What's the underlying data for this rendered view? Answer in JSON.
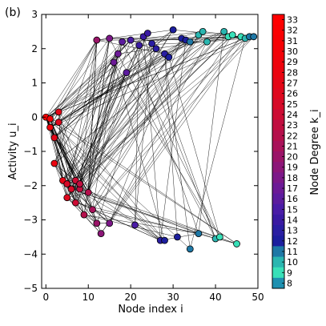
{
  "panel_label": "(b)",
  "chart_data": {
    "type": "scatter",
    "title": "",
    "xlabel": "Node index i",
    "ylabel": "Activity u_i",
    "xlim": [
      -1,
      50
    ],
    "ylim": [
      -5,
      3
    ],
    "x_ticks": [
      "0",
      "10",
      "20",
      "30",
      "40",
      "50"
    ],
    "y_ticks": [
      "3",
      "2",
      "1",
      "0",
      "−1",
      "−2",
      "−3",
      "−4",
      "−5"
    ],
    "colorbar": {
      "label": "Node Degree k_i",
      "min": 8,
      "max": 33,
      "tick_labels": [
        "33",
        "32",
        "31",
        "30",
        "29",
        "28",
        "27",
        "26",
        "25",
        "24",
        "23",
        "22",
        "21",
        "20",
        "19",
        "18",
        "17",
        "16",
        "15",
        "14",
        "13",
        "12",
        "11",
        "10",
        "9",
        "8"
      ],
      "colors": {
        "8": "#1e90b0",
        "9": "#38e0b8",
        "10": "#2ab6b0",
        "11": "#1e78a6",
        "12": "#1c1e9e",
        "13": "#2a1ea2",
        "14": "#3a1aa2",
        "15": "#4a1ca6",
        "16": "#5c1c9e",
        "17": "#6c1a96",
        "18": "#7c1888",
        "19": "#8c1678",
        "20": "#9a1468",
        "21": "#a8125a",
        "22": "#b4104c",
        "23": "#c00e40",
        "24": "#cc0c34",
        "25": "#d60a28",
        "26": "#de081e",
        "27": "#e40616",
        "28": "#ea0410",
        "29": "#ee030c",
        "30": "#f20208",
        "31": "#f60104",
        "32": "#fa0102",
        "33": "#ff0000"
      }
    },
    "grid": false,
    "legend": "none",
    "edge_count": 260,
    "nodes": [
      {
        "x": 0,
        "y": 0.0,
        "k": 33
      },
      {
        "x": 1,
        "y": -0.05,
        "k": 30
      },
      {
        "x": 1,
        "y": -0.3,
        "k": 29
      },
      {
        "x": 2,
        "y": -1.35,
        "k": 28
      },
      {
        "x": 2,
        "y": -0.6,
        "k": 27
      },
      {
        "x": 3,
        "y": 0.15,
        "k": 27
      },
      {
        "x": 3,
        "y": -0.15,
        "k": 26
      },
      {
        "x": 4,
        "y": -1.85,
        "k": 27
      },
      {
        "x": 5,
        "y": -2.35,
        "k": 26
      },
      {
        "x": 5,
        "y": -1.95,
        "k": 25
      },
      {
        "x": 6,
        "y": -2.1,
        "k": 25
      },
      {
        "x": 7,
        "y": -2.5,
        "k": 24
      },
      {
        "x": 7,
        "y": -1.85,
        "k": 24
      },
      {
        "x": 8,
        "y": -2.1,
        "k": 23
      },
      {
        "x": 8,
        "y": -1.95,
        "k": 23
      },
      {
        "x": 9,
        "y": -2.85,
        "k": 22
      },
      {
        "x": 10,
        "y": -2.2,
        "k": 22
      },
      {
        "x": 11,
        "y": -2.7,
        "k": 21
      },
      {
        "x": 12,
        "y": -3.1,
        "k": 20
      },
      {
        "x": 12,
        "y": 2.25,
        "k": 20
      },
      {
        "x": 13,
        "y": -3.4,
        "k": 19
      },
      {
        "x": 15,
        "y": 2.3,
        "k": 18
      },
      {
        "x": 15,
        "y": -3.1,
        "k": 18
      },
      {
        "x": 16,
        "y": 1.6,
        "k": 17
      },
      {
        "x": 17,
        "y": 1.85,
        "k": 17
      },
      {
        "x": 18,
        "y": 2.2,
        "k": 16
      },
      {
        "x": 19,
        "y": 1.3,
        "k": 16
      },
      {
        "x": 21,
        "y": -3.15,
        "k": 15
      },
      {
        "x": 20,
        "y": 2.25,
        "k": 15
      },
      {
        "x": 22,
        "y": 2.1,
        "k": 14
      },
      {
        "x": 23,
        "y": 2.35,
        "k": 14
      },
      {
        "x": 24,
        "y": 2.45,
        "k": 14
      },
      {
        "x": 25,
        "y": 2.15,
        "k": 13
      },
      {
        "x": 26,
        "y": 2.0,
        "k": 13
      },
      {
        "x": 27,
        "y": -3.6,
        "k": 13
      },
      {
        "x": 28,
        "y": 1.85,
        "k": 13
      },
      {
        "x": 28,
        "y": -3.6,
        "k": 12
      },
      {
        "x": 29,
        "y": 1.75,
        "k": 12
      },
      {
        "x": 30,
        "y": 2.55,
        "k": 12
      },
      {
        "x": 31,
        "y": -3.5,
        "k": 12
      },
      {
        "x": 32,
        "y": 2.3,
        "k": 12
      },
      {
        "x": 33,
        "y": 2.25,
        "k": 12
      },
      {
        "x": 34,
        "y": 2.2,
        "k": 11
      },
      {
        "x": 34,
        "y": -3.85,
        "k": 11
      },
      {
        "x": 36,
        "y": -3.4,
        "k": 11
      },
      {
        "x": 36,
        "y": 2.4,
        "k": 10
      },
      {
        "x": 37,
        "y": 2.5,
        "k": 10
      },
      {
        "x": 38,
        "y": 2.2,
        "k": 10
      },
      {
        "x": 40,
        "y": -3.55,
        "k": 10
      },
      {
        "x": 41,
        "y": -3.5,
        "k": 9
      },
      {
        "x": 42,
        "y": 2.5,
        "k": 10
      },
      {
        "x": 43,
        "y": 2.35,
        "k": 9
      },
      {
        "x": 44,
        "y": 2.4,
        "k": 9
      },
      {
        "x": 45,
        "y": -3.7,
        "k": 9
      },
      {
        "x": 46,
        "y": 2.35,
        "k": 9
      },
      {
        "x": 47,
        "y": 2.3,
        "k": 10
      },
      {
        "x": 48,
        "y": 2.35,
        "k": 11
      },
      {
        "x": 49,
        "y": 2.35,
        "k": 11
      }
    ]
  }
}
